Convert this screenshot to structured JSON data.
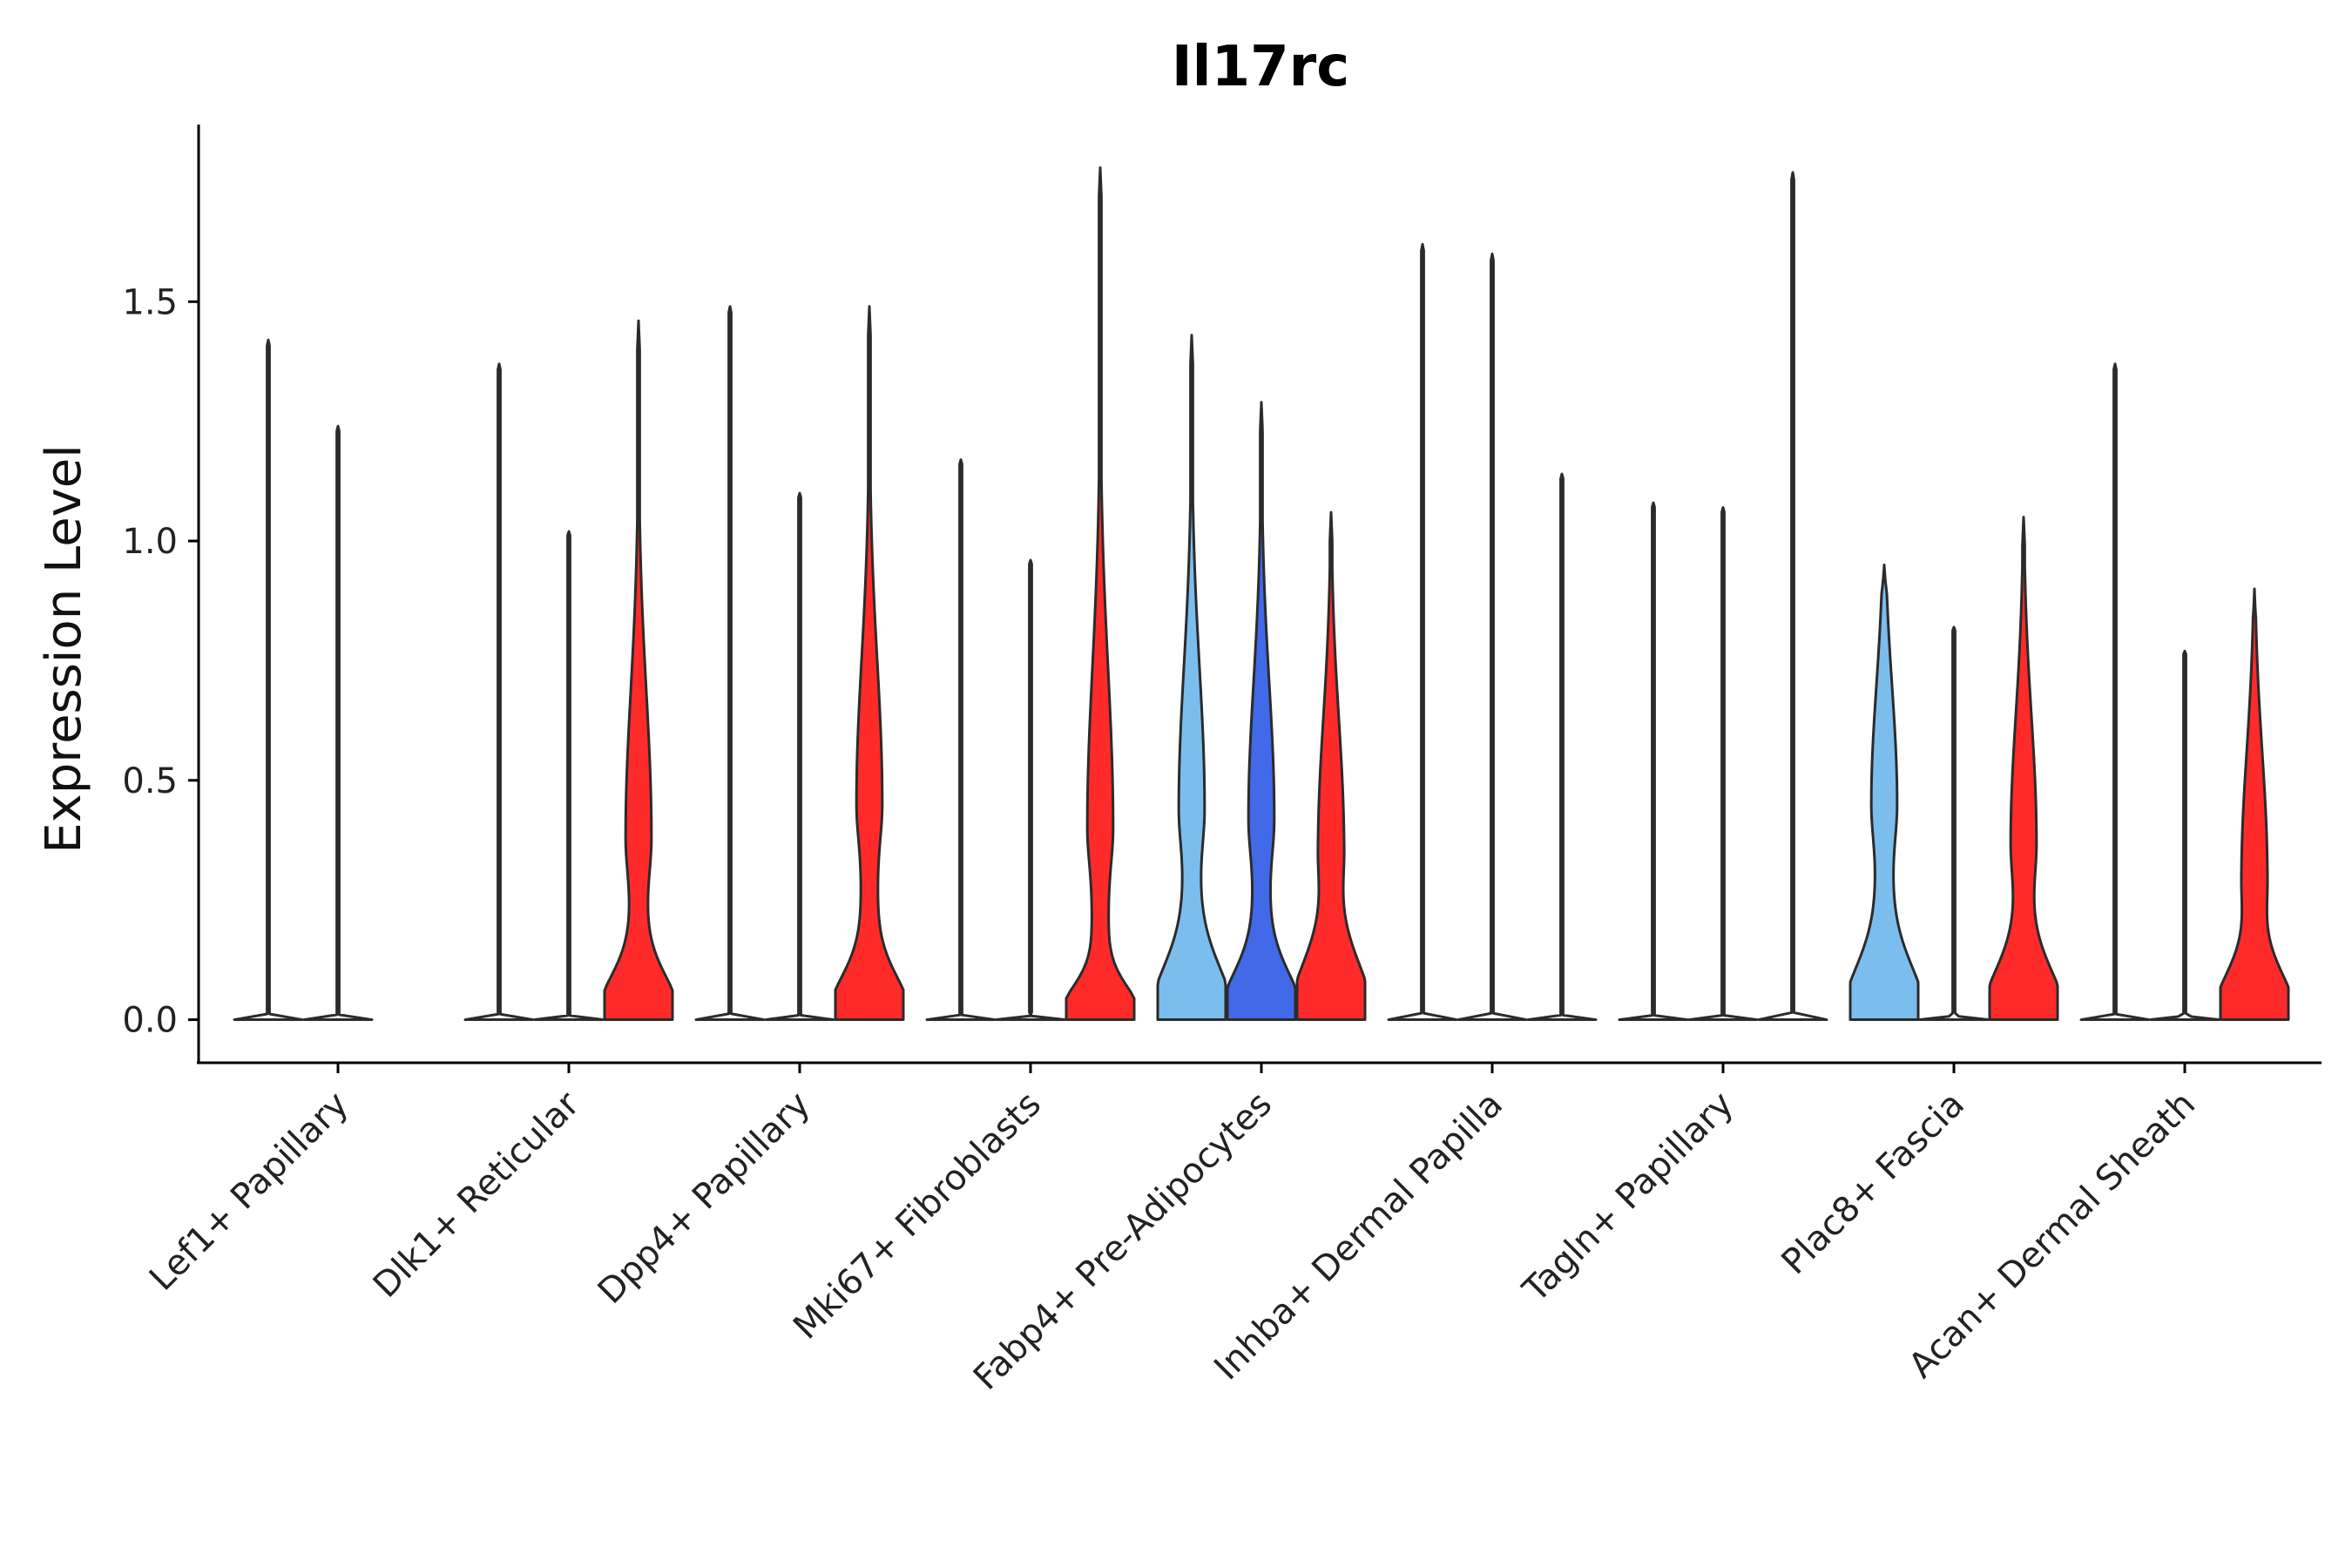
{
  "chart_data": {
    "type": "violin",
    "title": "Il17rc",
    "xlabel": "",
    "ylabel": "Expression Level",
    "ylim": [
      -0.09,
      1.87
    ],
    "yticks": [
      0.0,
      0.5,
      1.0,
      1.5
    ],
    "ytick_labels": [
      "0.0",
      "0.5",
      "1.0",
      "1.5"
    ],
    "grid": false,
    "legend": "none",
    "colors": {
      "group1": "#7bbeee",
      "group2": "#4169e8",
      "group3": "#ff2b2b",
      "zero": "#ffffff",
      "outline": "#2b2b2b"
    },
    "categories": [
      "Lef1+ Papillary",
      "Dlk1+ Reticular",
      "Dpp4+ Papillary",
      "Mki67+ Fibroblasts",
      "Fabp4+ Pre-Adipocytes",
      "Inhba+ Dermal Papilla",
      "Tagln+ Papillary",
      "Plac8+ Fascia",
      "Acan+ Dermal Sheath"
    ],
    "violins": [
      [
        {
          "max": 1.42,
          "expressed": false
        },
        {
          "max": 1.24,
          "expressed": false
        },
        null
      ],
      [
        {
          "max": 1.37,
          "expressed": false
        },
        {
          "max": 1.02,
          "expressed": false
        },
        {
          "max": 1.46,
          "expressed": true,
          "mode": 0.38,
          "base": 0.12
        }
      ],
      [
        {
          "max": 1.49,
          "expressed": false
        },
        {
          "max": 1.1,
          "expressed": false
        },
        {
          "max": 1.49,
          "expressed": true,
          "mode": 0.45,
          "base": 0.12
        }
      ],
      [
        {
          "max": 1.17,
          "expressed": false
        },
        {
          "max": 0.96,
          "expressed": false
        },
        {
          "max": 1.78,
          "expressed": true,
          "mode": 0.4,
          "base": 0.09
        }
      ],
      [
        {
          "max": 1.43,
          "expressed": true,
          "mode": 0.44,
          "base": 0.15
        },
        {
          "max": 1.29,
          "expressed": true,
          "mode": 0.42,
          "base": 0.13
        },
        {
          "max": 1.06,
          "expressed": true,
          "mode": 0.36,
          "base": 0.16
        }
      ],
      [
        {
          "max": 1.62,
          "expressed": false
        },
        {
          "max": 1.6,
          "expressed": false
        },
        {
          "max": 1.14,
          "expressed": false
        }
      ],
      [
        {
          "max": 1.08,
          "expressed": false
        },
        {
          "max": 1.07,
          "expressed": false
        },
        {
          "max": 1.77,
          "expressed": false
        }
      ],
      [
        {
          "max": 0.95,
          "expressed": true,
          "mode": 0.45,
          "base": 0.15
        },
        {
          "max": 0.82,
          "expressed": false
        },
        {
          "max": 1.05,
          "expressed": true,
          "mode": 0.37,
          "base": 0.14
        }
      ],
      [
        {
          "max": 1.37,
          "expressed": false
        },
        {
          "max": 0.77,
          "expressed": false
        },
        {
          "max": 0.9,
          "expressed": true,
          "mode": 0.3,
          "base": 0.13
        }
      ]
    ]
  }
}
